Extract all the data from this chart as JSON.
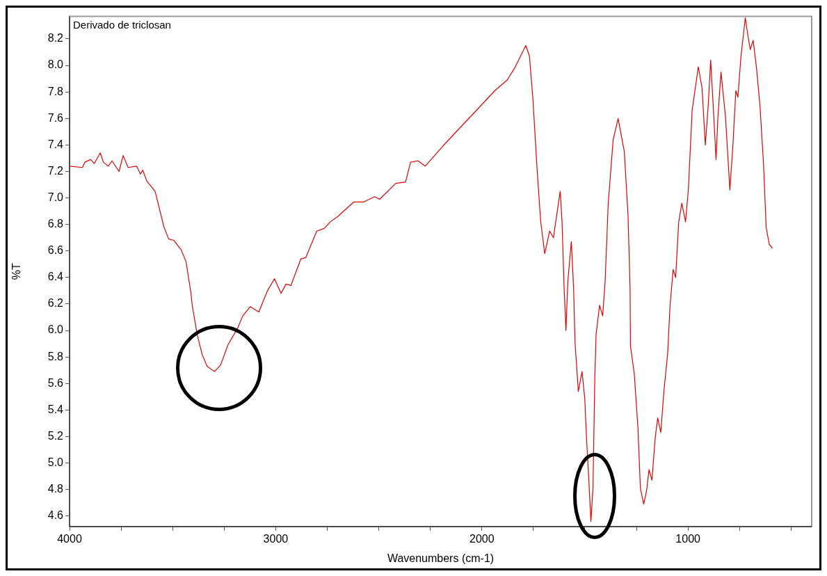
{
  "chart_data": {
    "type": "line",
    "title": "Derivado de triclosan",
    "xlabel": "Wavenumbers (cm-1)",
    "ylabel": "%T",
    "xlim": [
      4000,
      400
    ],
    "ylim": [
      4.52,
      8.37
    ],
    "xticks": [
      4000,
      {
        "value": 3750,
        "label": null
      },
      {
        "value": 3500,
        "label": null
      },
      {
        "value": 3250,
        "label": null
      },
      3000,
      {
        "value": 2750,
        "label": null
      },
      {
        "value": 2500,
        "label": null
      },
      {
        "value": 2250,
        "label": null
      },
      2000,
      {
        "value": 1750,
        "label": null
      },
      {
        "value": 1500,
        "label": null
      },
      {
        "value": 1250,
        "label": null
      },
      1000,
      {
        "value": 750,
        "label": null
      },
      {
        "value": 500,
        "label": null
      }
    ],
    "yticks": [
      4.6,
      4.8,
      {
        "value": 5,
        "label": "5.0"
      },
      5.2,
      5.4,
      5.6,
      5.8,
      {
        "value": 6,
        "label": "6.0"
      },
      6.2,
      6.4,
      6.6,
      6.8,
      {
        "value": 7,
        "label": "7.0"
      },
      7.2,
      7.4,
      7.6,
      7.8,
      {
        "value": 8,
        "label": "8.0"
      },
      8.2
    ],
    "grid": false,
    "legend": false,
    "marker": "none",
    "line_style": "solid",
    "series": [
      {
        "color": "#e00000",
        "x": [
          4000,
          3937,
          3926,
          3898,
          3880,
          3851,
          3836,
          3812,
          3794,
          3760,
          3740,
          3716,
          3675,
          3656,
          3645,
          3626,
          3585,
          3542,
          3519,
          3494,
          3459,
          3435,
          3411,
          3405,
          3381,
          3357,
          3333,
          3297,
          3267,
          3232,
          3184,
          3160,
          3124,
          3082,
          3040,
          3006,
          2974,
          2950,
          2926,
          2878,
          2854,
          2801,
          2765,
          2735,
          2699,
          2621,
          2573,
          2520,
          2496,
          2418,
          2370,
          2346,
          2310,
          2275,
          2190,
          2082,
          2033,
          1937,
          1877,
          1841,
          1787,
          1769,
          1752,
          1733,
          1715,
          1695,
          1671,
          1653,
          1620,
          1611,
          1601,
          1592,
          1583,
          1566,
          1555,
          1548,
          1532,
          1514,
          1501,
          1492,
          1482,
          1471,
          1461,
          1452,
          1446,
          1429,
          1414,
          1402,
          1387,
          1363,
          1339,
          1309,
          1291,
          1281,
          1279,
          1261,
          1243,
          1231,
          1215,
          1201,
          1189,
          1175,
          1159,
          1147,
          1132,
          1117,
          1099,
          1087,
          1072,
          1060,
          1045,
          1030,
          1012,
          998,
          980,
          950,
          932,
          916,
          902,
          890,
          878,
          864,
          855,
          840,
          818,
          797,
          782,
          768,
          758,
          743,
          722,
          710,
          698,
          684,
          669,
          651,
          633,
          621,
          606,
          590
        ],
        "values": [
          7.24,
          7.23,
          7.27,
          7.29,
          7.26,
          7.34,
          7.27,
          7.24,
          7.28,
          7.2,
          7.32,
          7.23,
          7.24,
          7.18,
          7.21,
          7.13,
          7.05,
          6.78,
          6.69,
          6.68,
          6.61,
          6.52,
          6.28,
          6.19,
          5.97,
          5.82,
          5.73,
          5.69,
          5.74,
          5.89,
          6.02,
          6.11,
          6.18,
          6.14,
          6.3,
          6.39,
          6.28,
          6.35,
          6.34,
          6.54,
          6.55,
          6.75,
          6.77,
          6.82,
          6.86,
          6.97,
          6.97,
          7.01,
          6.99,
          7.11,
          7.12,
          7.27,
          7.28,
          7.24,
          7.39,
          7.57,
          7.65,
          7.81,
          7.89,
          7.98,
          8.15,
          8.07,
          7.74,
          7.24,
          6.83,
          6.58,
          6.75,
          6.7,
          7.05,
          6.82,
          6.32,
          6.0,
          6.37,
          6.67,
          6.32,
          5.91,
          5.54,
          5.69,
          5.49,
          5.18,
          4.9,
          4.56,
          4.81,
          5.64,
          5.97,
          6.19,
          6.11,
          6.37,
          6.96,
          7.44,
          7.6,
          7.35,
          6.87,
          6.32,
          5.88,
          5.68,
          5.27,
          4.81,
          4.69,
          4.79,
          4.95,
          4.87,
          5.19,
          5.34,
          5.23,
          5.54,
          5.82,
          6.19,
          6.46,
          6.4,
          6.82,
          6.96,
          6.82,
          7.07,
          7.66,
          7.99,
          7.83,
          7.4,
          7.7,
          8.04,
          7.7,
          7.29,
          7.61,
          7.95,
          7.61,
          7.06,
          7.4,
          7.81,
          7.76,
          8.07,
          8.36,
          8.23,
          8.12,
          8.19,
          8.0,
          7.7,
          7.24,
          6.78,
          6.65,
          6.62
        ]
      }
    ]
  }
}
